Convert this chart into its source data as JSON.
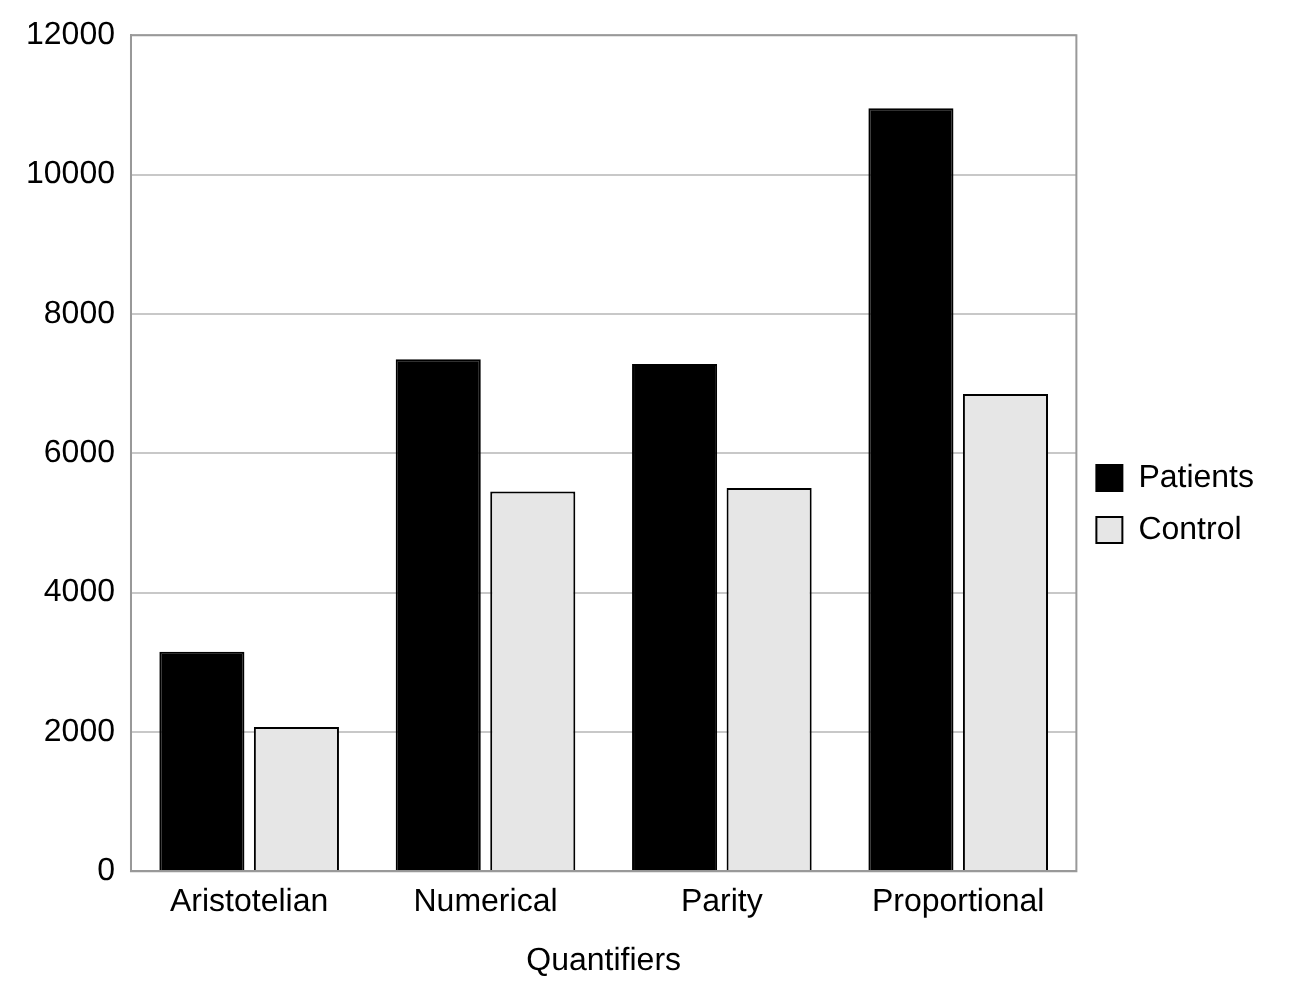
{
  "chart_data": {
    "type": "bar",
    "xlabel": "Quantifiers",
    "categories": [
      "Aristotelian",
      "Numerical",
      "Parity",
      "Proportional"
    ],
    "series": [
      {
        "name": "Patients",
        "color": "#000000",
        "values": [
          3150,
          7350,
          7280,
          10950
        ]
      },
      {
        "name": "Control",
        "color": "#e6e6e6",
        "values": [
          2070,
          5450,
          5500,
          6850
        ]
      }
    ],
    "ylim": [
      0,
      12000
    ],
    "yticks": [
      0,
      2000,
      4000,
      6000,
      8000,
      10000,
      12000
    ],
    "grid": "y",
    "legend": "right"
  }
}
